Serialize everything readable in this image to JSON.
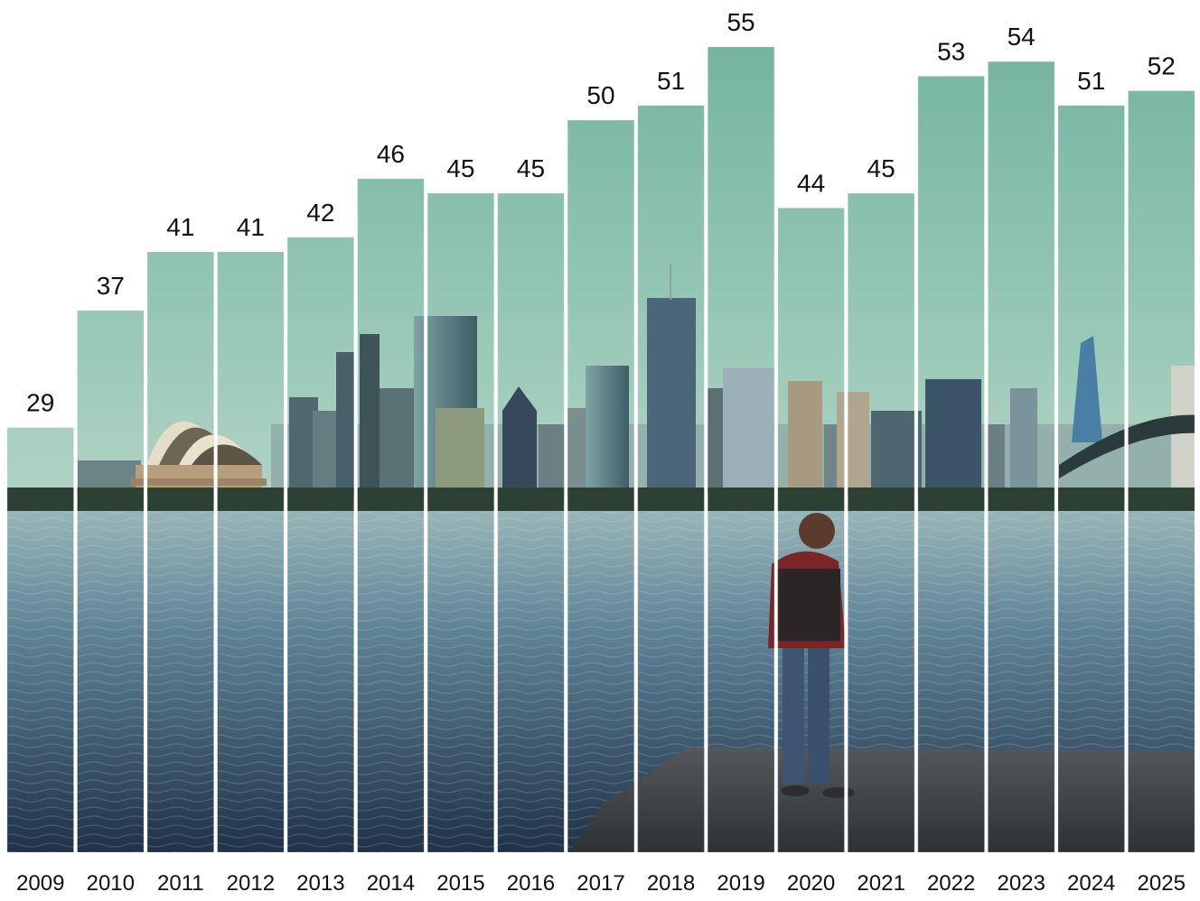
{
  "chart_data": {
    "type": "bar",
    "title": "",
    "xlabel": "",
    "ylabel": "",
    "categories": [
      "2009",
      "2010",
      "2011",
      "2012",
      "2013",
      "2014",
      "2015",
      "2016",
      "2017",
      "2018",
      "2019",
      "2020",
      "2021",
      "2022",
      "2023",
      "2024",
      "2025"
    ],
    "values": [
      29,
      37,
      41,
      41,
      42,
      46,
      45,
      45,
      50,
      51,
      55,
      44,
      45,
      53,
      54,
      51,
      52
    ],
    "ylim": [
      0,
      55
    ],
    "grid": false,
    "legend": "none",
    "bar_fill": "photo-of-harbour-skyline",
    "colors": {
      "sky_top": "#74b5a2",
      "sky_bottom": "#a9cfc0",
      "water_top": "#8aa9ad",
      "water_bottom": "#22344e",
      "label": "#111111",
      "separator": "#ffffff"
    }
  }
}
